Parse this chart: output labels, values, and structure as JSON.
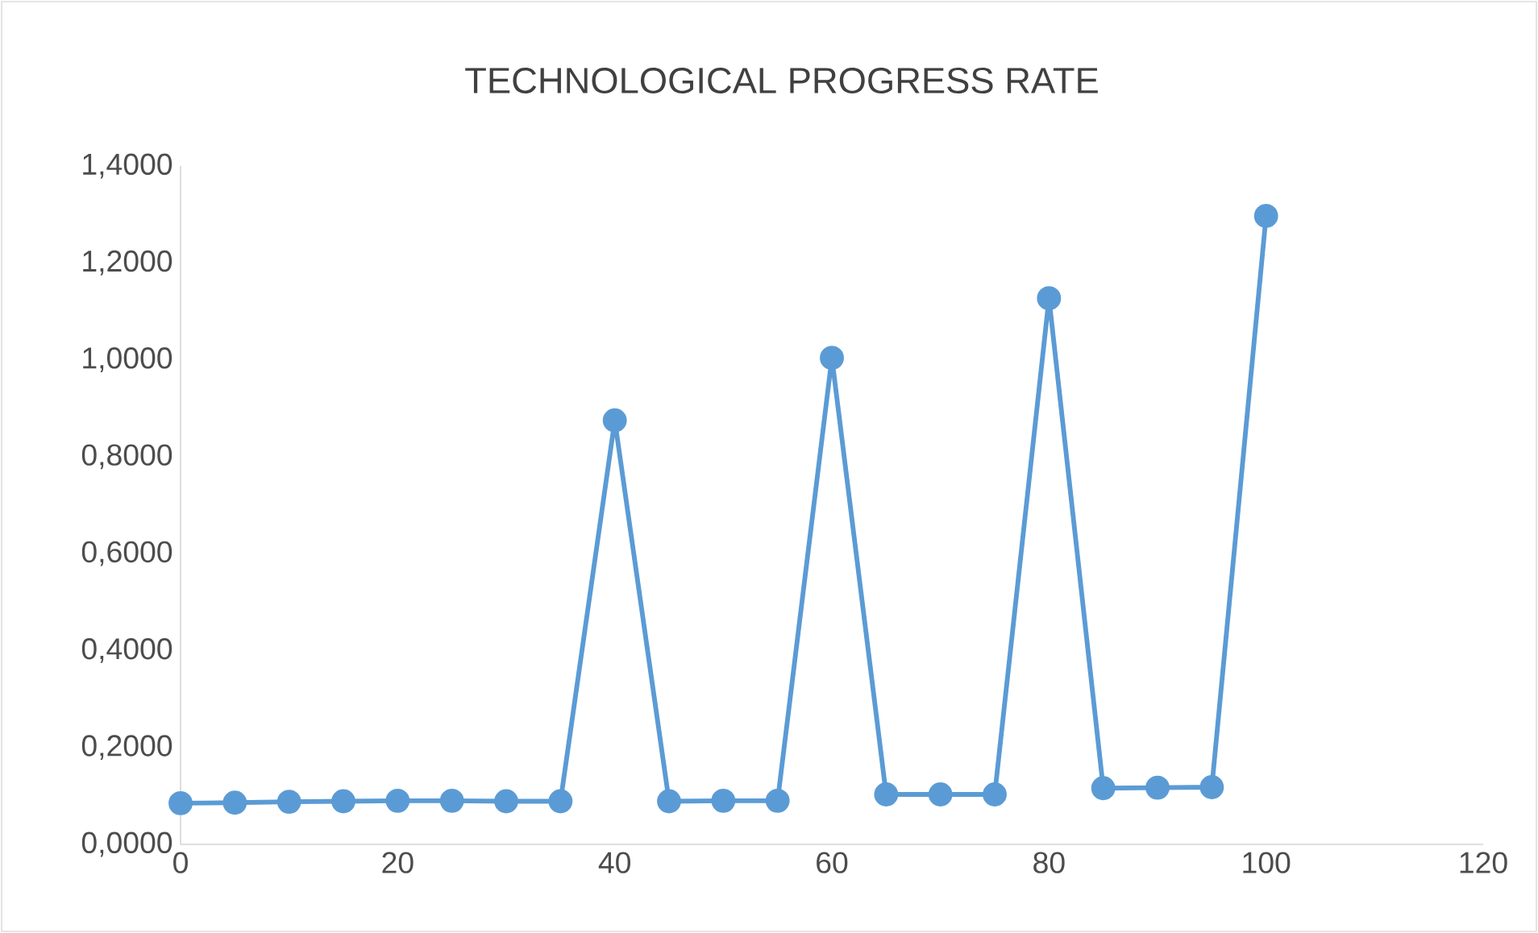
{
  "chart_data": {
    "type": "line",
    "title": "TECHNOLOGICAL PROGRESS RATE",
    "x": [
      0,
      5,
      10,
      15,
      20,
      25,
      30,
      35,
      40,
      45,
      50,
      55,
      60,
      65,
      70,
      75,
      80,
      85,
      90,
      95,
      100
    ],
    "series": [
      {
        "color": "#5b9bd5",
        "values": [
          0.085,
          0.086,
          0.088,
          0.089,
          0.09,
          0.09,
          0.089,
          0.089,
          0.875,
          0.089,
          0.09,
          0.09,
          1.004,
          0.103,
          0.103,
          0.103,
          1.127,
          0.116,
          0.117,
          0.118,
          1.297
        ]
      }
    ],
    "xlim": [
      0,
      120
    ],
    "xticks": [
      0,
      20,
      40,
      60,
      80,
      100,
      120
    ],
    "ylim": [
      0,
      1.4
    ],
    "yticks": [
      {
        "value": 0,
        "label": "0,0000"
      },
      {
        "value": 0.2,
        "label": "0,2000"
      },
      {
        "value": 0.4,
        "label": "0,4000"
      },
      {
        "value": 0.6,
        "label": "0,6000"
      },
      {
        "value": 0.8,
        "label": "0,8000"
      },
      {
        "value": 1.0,
        "label": "1,0000"
      },
      {
        "value": 1.2,
        "label": "1,2000"
      },
      {
        "value": 1.4,
        "label": "1,4000"
      }
    ],
    "grid": false,
    "marker": "circle",
    "line_style": "solid"
  }
}
